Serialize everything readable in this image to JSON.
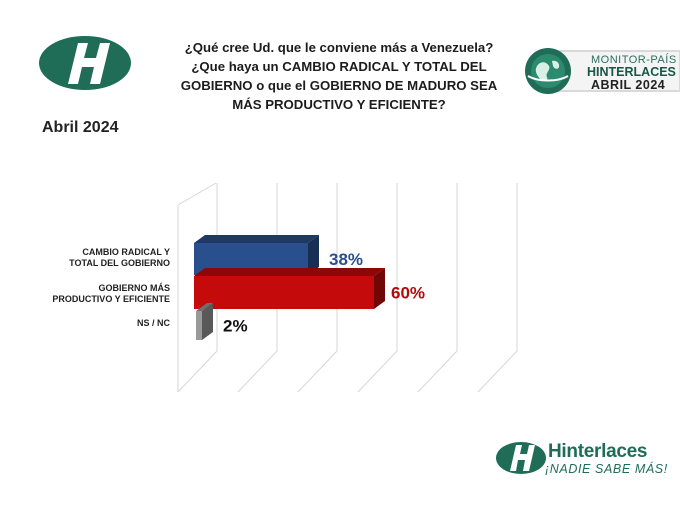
{
  "header": {
    "question_lines": [
      "¿Qué cree Ud. que le conviene más a Venezuela?",
      "¿Que haya un CAMBIO RADICAL Y TOTAL DEL",
      "GOBIERNO o que el GOBIERNO DE MADURO SEA",
      "MÁS PRODUCTIVO Y EFICIENTE?"
    ],
    "date_label": "Abril 2024"
  },
  "badge": {
    "line1": "MONITOR-PAÍS",
    "line2": "HINTERLACES",
    "line3": "ABRIL 2024"
  },
  "footer": {
    "brand": "Hinterlaces",
    "tagline": "¡NADIE SABE MÁS!"
  },
  "colors": {
    "brand_green": "#1f6d57",
    "bar_blue": "#2a4f8d",
    "bar_red": "#c40a0a",
    "bar_gray": "#9a9a9a"
  },
  "icons": [
    "logo-icon",
    "globe-icon"
  ],
  "chart_data": {
    "type": "bar",
    "orientation": "horizontal",
    "title": "",
    "xlabel": "",
    "ylabel": "",
    "xlim": [
      0,
      100
    ],
    "grid": true,
    "legend": "none",
    "categories": [
      [
        "CAMBIO RADICAL Y",
        "TOTAL DEL GOBIERNO"
      ],
      [
        "GOBIERNO MÁS",
        "PRODUCTIVO Y EFICIENTE"
      ],
      [
        "NS / NC"
      ]
    ],
    "values": [
      38,
      60,
      2
    ],
    "value_labels": [
      "38%",
      "60%",
      "2%"
    ],
    "colors": [
      "#2a4f8d",
      "#c40a0a",
      "#9a9a9a"
    ],
    "label_colors": [
      "#2a4f8d",
      "#b00a0a",
      "#111111"
    ]
  }
}
